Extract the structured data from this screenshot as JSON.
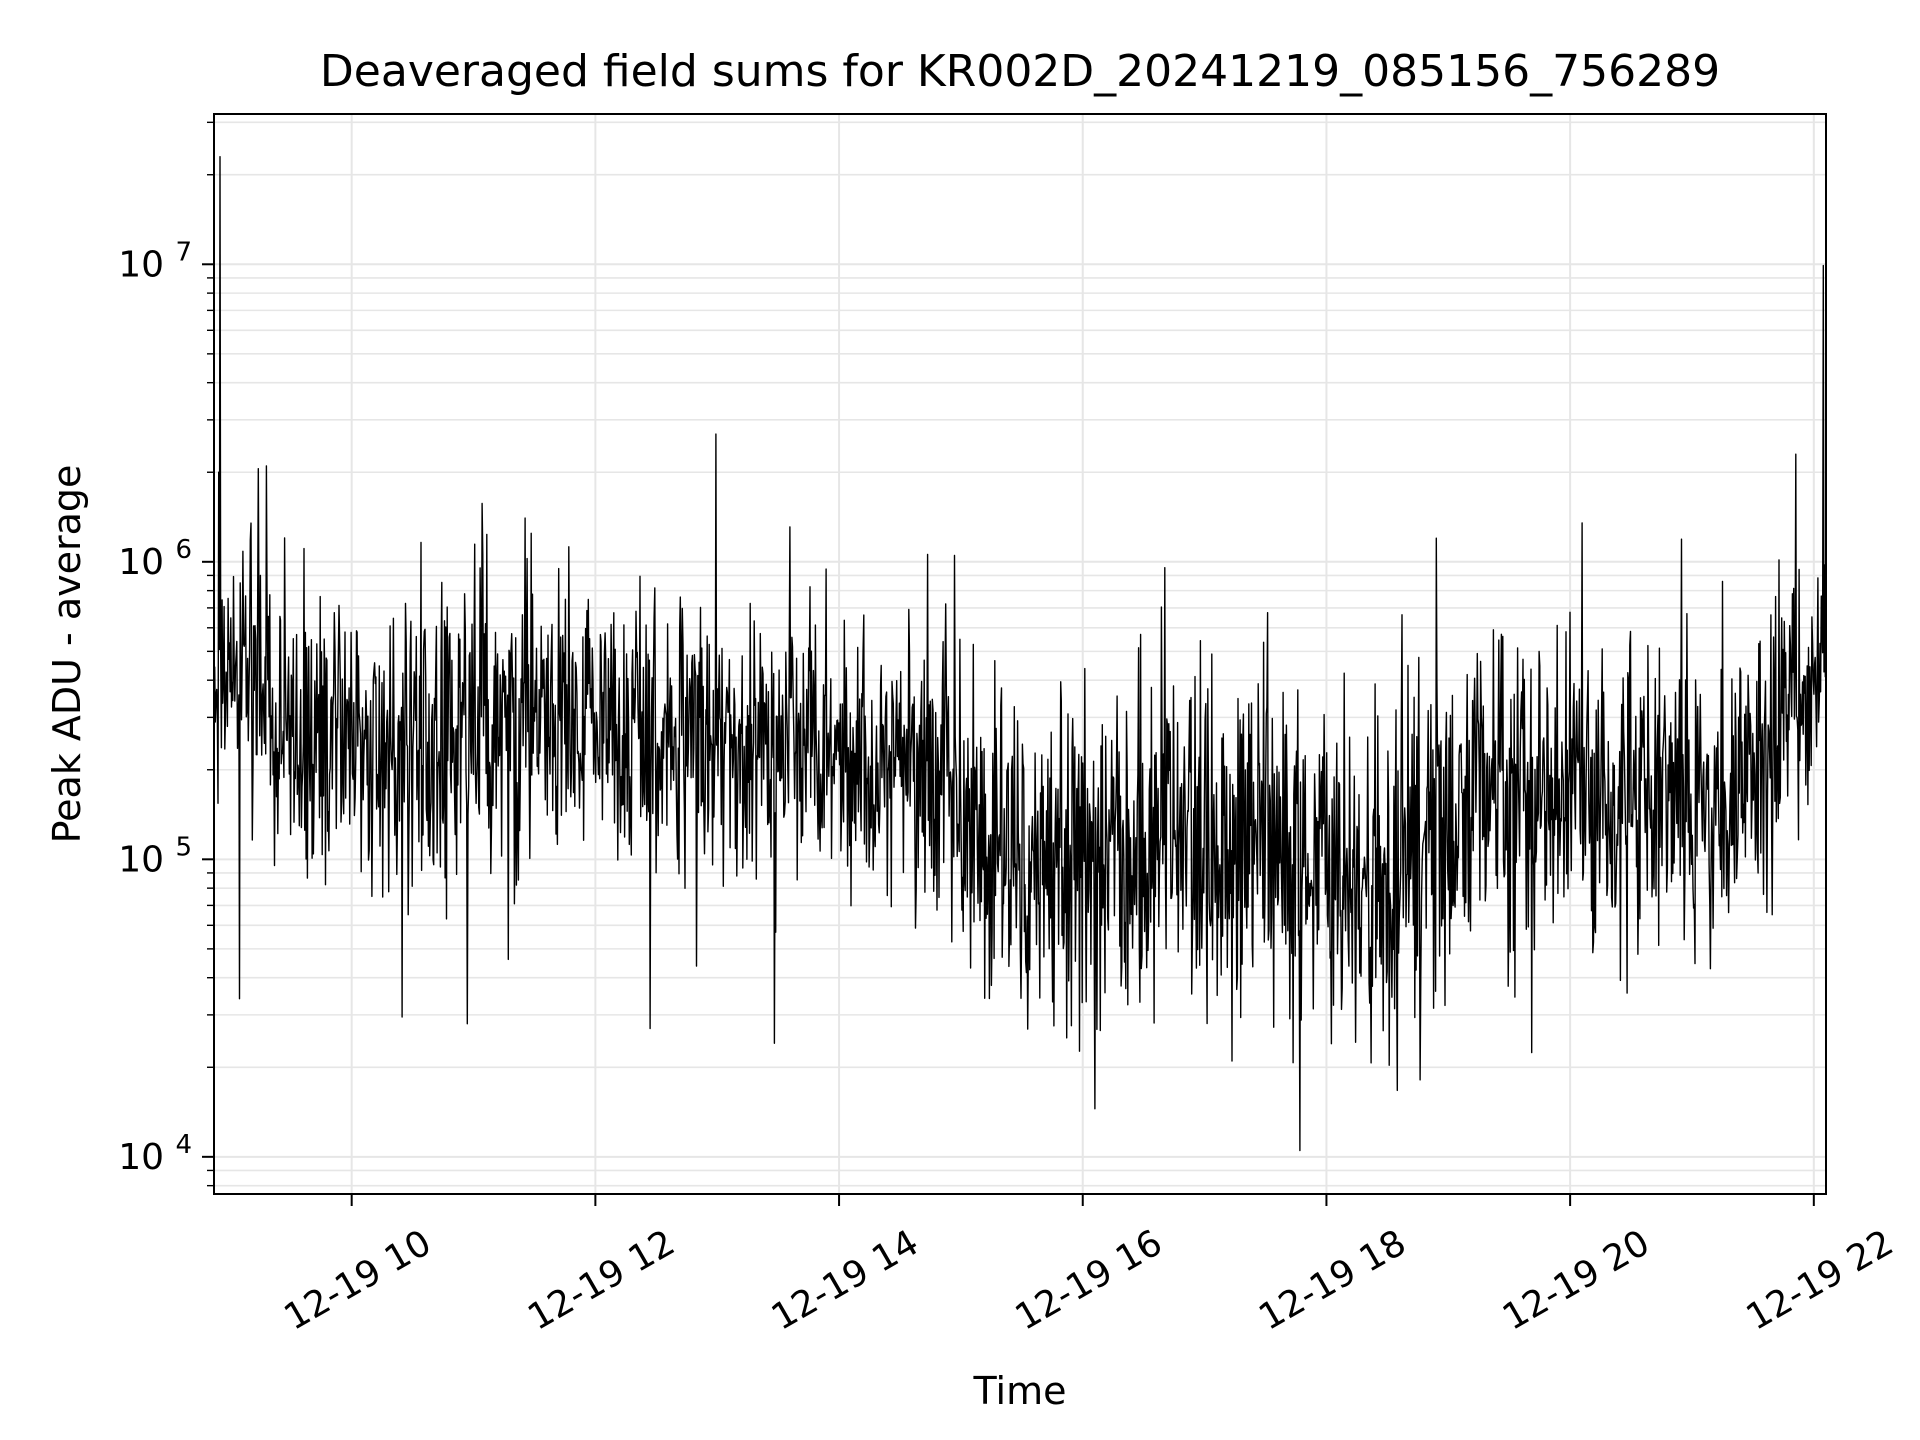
{
  "chart_data": {
    "type": "line",
    "title": "Deaveraged field sums for KR002D_20241219_085156_756289",
    "xlabel": "Time",
    "ylabel": "Peak ADU - average",
    "yscale": "log",
    "xlim_hours": [
      8.87,
      22.1
    ],
    "ylim": [
      7500,
      32000000
    ],
    "grid": true,
    "grid_minor": true,
    "line_color": "#000000",
    "x_ticks": [
      {
        "hour": 10,
        "label": "12-19 10"
      },
      {
        "hour": 12,
        "label": "12-19 12"
      },
      {
        "hour": 14,
        "label": "12-19 14"
      },
      {
        "hour": 16,
        "label": "12-19 16"
      },
      {
        "hour": 18,
        "label": "12-19 18"
      },
      {
        "hour": 20,
        "label": "12-19 20"
      },
      {
        "hour": 22,
        "label": "12-19 22"
      }
    ],
    "y_ticks": [
      {
        "value": 10000,
        "base": "10",
        "exp": "4"
      },
      {
        "value": 100000,
        "base": "10",
        "exp": "5"
      },
      {
        "value": 1000000,
        "base": "10",
        "exp": "6"
      },
      {
        "value": 10000000,
        "base": "10",
        "exp": "7"
      }
    ],
    "series": [
      {
        "name": "Peak ADU - average",
        "n_points": 2400,
        "trend": [
          {
            "hour": 8.87,
            "median": 400000,
            "log_spread": 0.22
          },
          {
            "hour": 9.3,
            "median": 420000,
            "log_spread": 0.22
          },
          {
            "hour": 9.35,
            "median": 250000,
            "log_spread": 0.24
          },
          {
            "hour": 11.0,
            "median": 250000,
            "log_spread": 0.24
          },
          {
            "hour": 11.05,
            "median": 300000,
            "log_spread": 0.25
          },
          {
            "hour": 13.0,
            "median": 260000,
            "log_spread": 0.24
          },
          {
            "hour": 14.0,
            "median": 210000,
            "log_spread": 0.22
          },
          {
            "hour": 14.9,
            "median": 210000,
            "log_spread": 0.22
          },
          {
            "hour": 15.0,
            "median": 130000,
            "log_spread": 0.26
          },
          {
            "hour": 15.8,
            "median": 95000,
            "log_spread": 0.28
          },
          {
            "hour": 17.0,
            "median": 110000,
            "log_spread": 0.3
          },
          {
            "hour": 17.8,
            "median": 90000,
            "log_spread": 0.3
          },
          {
            "hour": 18.5,
            "median": 100000,
            "log_spread": 0.28
          },
          {
            "hour": 19.0,
            "median": 150000,
            "log_spread": 0.28
          },
          {
            "hour": 20.0,
            "median": 160000,
            "log_spread": 0.27
          },
          {
            "hour": 21.0,
            "median": 150000,
            "log_spread": 0.25
          },
          {
            "hour": 21.6,
            "median": 180000,
            "log_spread": 0.25
          },
          {
            "hour": 21.7,
            "median": 300000,
            "log_spread": 0.2
          },
          {
            "hour": 22.1,
            "median": 500000,
            "log_spread": 0.18
          }
        ],
        "notable_points": [
          {
            "hour": 8.92,
            "value": 23000000
          },
          {
            "hour": 8.91,
            "value": 2000000
          },
          {
            "hour": 9.08,
            "value": 34000
          },
          {
            "hour": 9.3,
            "value": 2100000
          },
          {
            "hour": 10.95,
            "value": 28000
          },
          {
            "hour": 12.45,
            "value": 27000
          },
          {
            "hour": 14.95,
            "value": 1050000
          },
          {
            "hour": 16.1,
            "value": 14500
          },
          {
            "hour": 17.78,
            "value": 10500
          },
          {
            "hour": 18.9,
            "value": 1200000
          },
          {
            "hour": 20.1,
            "value": 1350000
          },
          {
            "hour": 21.85,
            "value": 2300000
          },
          {
            "hour": 22.08,
            "value": 9900000
          }
        ]
      }
    ]
  }
}
